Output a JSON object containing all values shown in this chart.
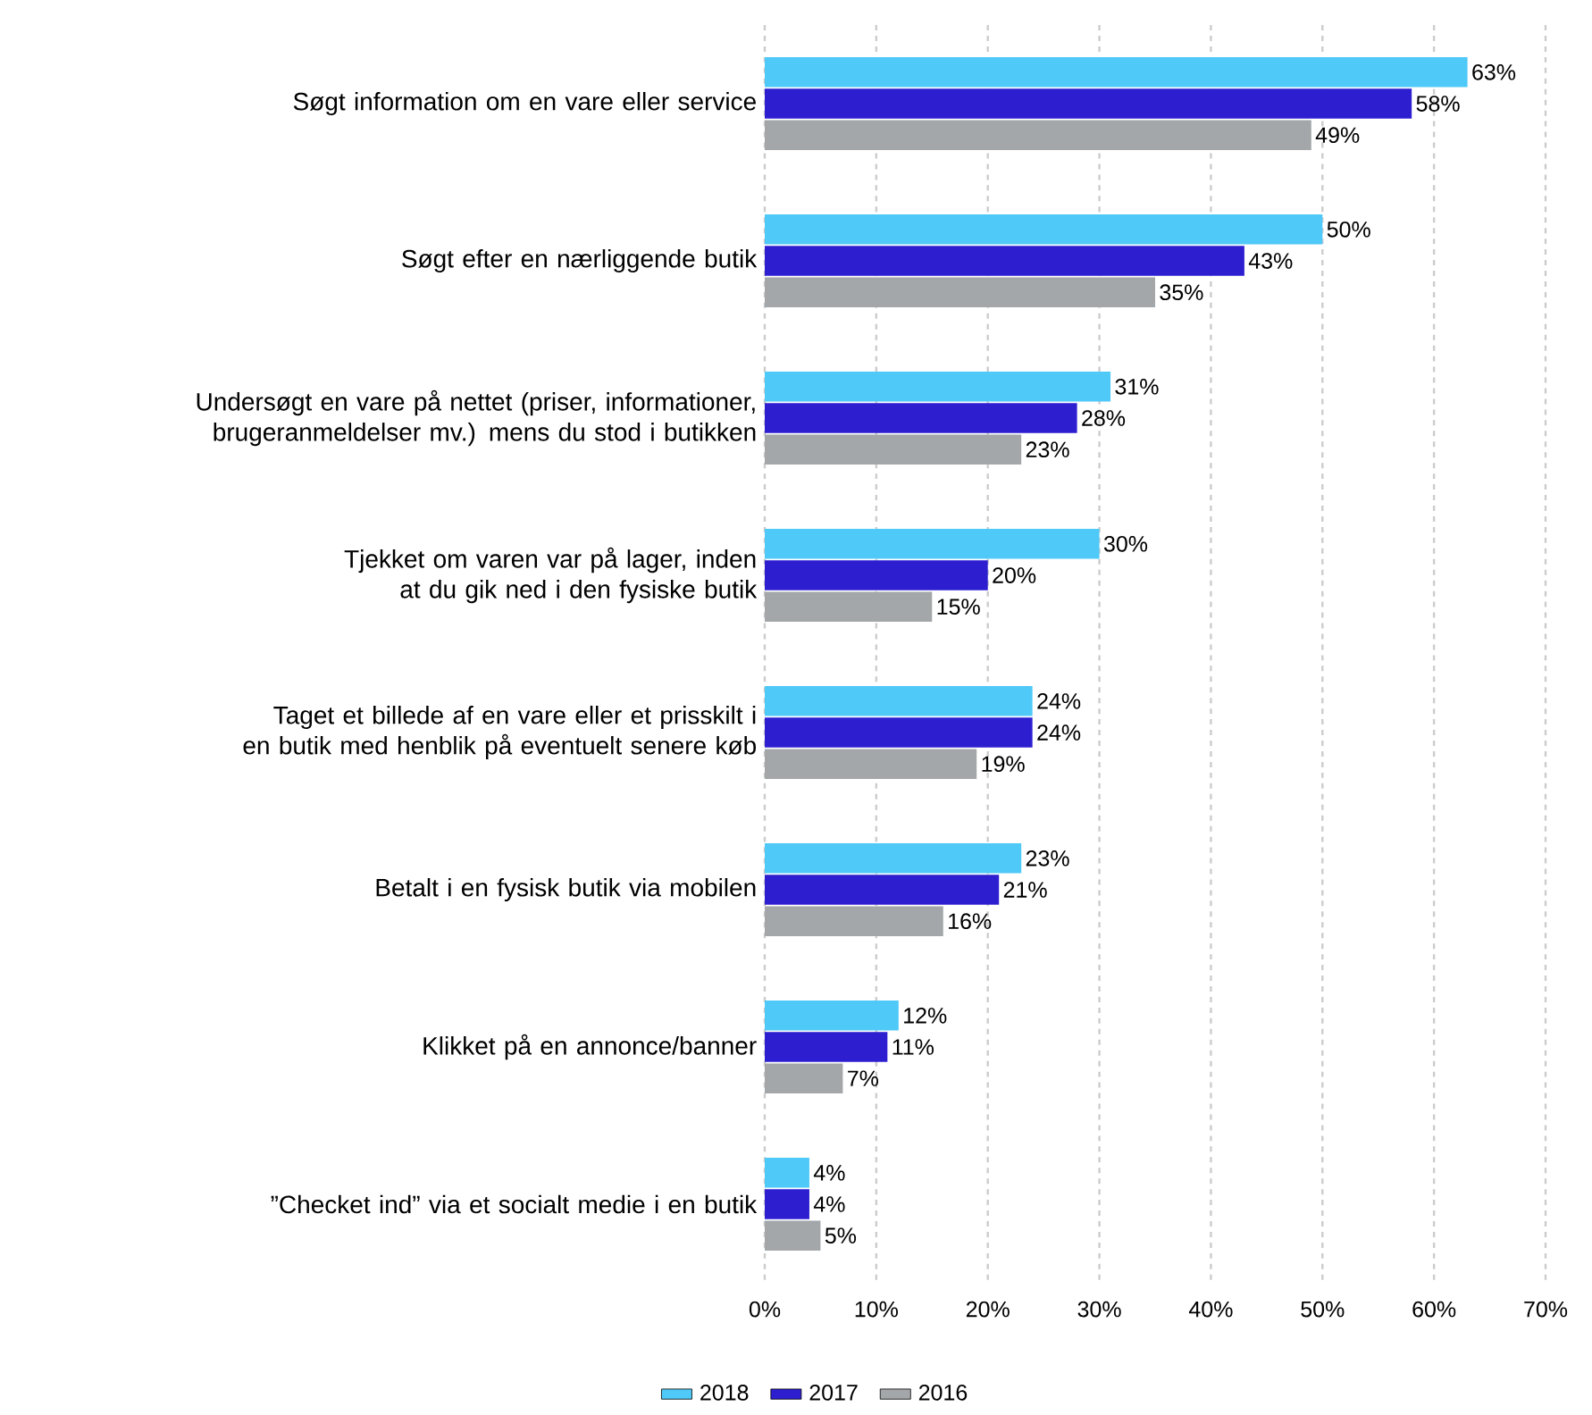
{
  "chart_data": {
    "type": "bar",
    "orientation": "horizontal",
    "categories": [
      "Søgt information om en vare eller service",
      "Søgt efter en nærliggende butik",
      "Undersøgt en vare på nettet (priser, informationer, brugeranmeldelser mv.) mens du stod i butikken",
      "Tjekket om varen var på lager, inden at du gik ned i den fysiske butik",
      "Taget et billede af en vare eller et prisskilt i en butik med henblik på eventuelt senere køb",
      "Betalt i en fysisk butik via mobilen",
      "Klikket på en annonce/banner",
      "”Checket ind” via et socialt medie i en butik"
    ],
    "series": [
      {
        "name": "2018",
        "color": "#4fc9f7",
        "values": [
          63,
          50,
          31,
          30,
          24,
          23,
          12,
          4
        ],
        "value_labels": [
          "63%",
          "50%",
          "31%",
          "30%",
          "24%",
          "23%",
          "12%",
          "4%"
        ]
      },
      {
        "name": "2017",
        "color": "#2d1fd0",
        "values": [
          58,
          43,
          28,
          20,
          24,
          21,
          11,
          4
        ],
        "value_labels": [
          "58%",
          "43%",
          "28%",
          "20%",
          "24%",
          "21%",
          "11%",
          "4%"
        ]
      },
      {
        "name": "2016",
        "color": "#a3a7a9",
        "values": [
          49,
          35,
          23,
          15,
          19,
          16,
          7,
          5
        ],
        "value_labels": [
          "49%",
          "35%",
          "23%",
          "15%",
          "19%",
          "16%",
          "7%",
          "5%"
        ]
      }
    ],
    "xlim": [
      0,
      70
    ],
    "xticks": [
      {
        "value": 0,
        "label": "0%"
      },
      {
        "value": 10,
        "label": "10%"
      },
      {
        "value": 20,
        "label": "20%"
      },
      {
        "value": 30,
        "label": "30%"
      },
      {
        "value": 40,
        "label": "40%"
      },
      {
        "value": 50,
        "label": "50%"
      },
      {
        "value": 60,
        "label": "60%"
      },
      {
        "value": 70,
        "label": "70%"
      }
    ],
    "grid": "x",
    "legend": "bottom"
  }
}
